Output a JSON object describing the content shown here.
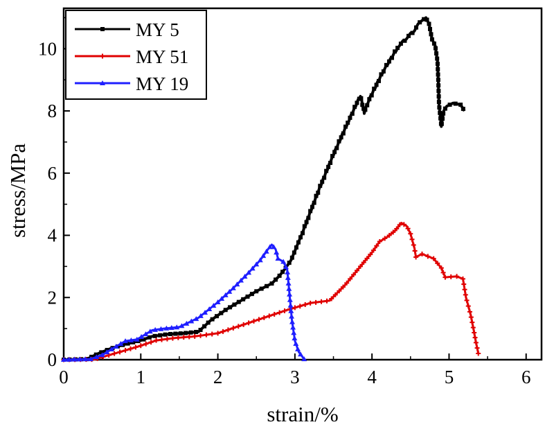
{
  "chart_data": {
    "type": "line",
    "title": "",
    "xlabel": "strain/%",
    "ylabel": "stress/MPa",
    "xlim": [
      0,
      6.2
    ],
    "ylim": [
      0,
      11.3
    ],
    "xticks": [
      "0",
      "1",
      "2",
      "3",
      "4",
      "5",
      "6"
    ],
    "yticks": [
      "0",
      "2",
      "4",
      "6",
      "8",
      "10"
    ],
    "grid": false,
    "legend_position": "top-left",
    "series": [
      {
        "name": "MY 5",
        "color": "#000000",
        "marker": "square",
        "points": [
          [
            0,
            0
          ],
          [
            0.3,
            0.02
          ],
          [
            0.45,
            0.2
          ],
          [
            0.6,
            0.35
          ],
          [
            0.8,
            0.5
          ],
          [
            1.0,
            0.62
          ],
          [
            1.15,
            0.75
          ],
          [
            1.35,
            0.82
          ],
          [
            1.55,
            0.85
          ],
          [
            1.75,
            0.9
          ],
          [
            1.9,
            1.25
          ],
          [
            2.1,
            1.6
          ],
          [
            2.3,
            1.9
          ],
          [
            2.5,
            2.2
          ],
          [
            2.7,
            2.45
          ],
          [
            2.8,
            2.7
          ],
          [
            2.88,
            2.95
          ],
          [
            2.95,
            3.2
          ],
          [
            3.1,
            4.1
          ],
          [
            3.3,
            5.4
          ],
          [
            3.5,
            6.6
          ],
          [
            3.7,
            7.7
          ],
          [
            3.85,
            8.5
          ],
          [
            3.9,
            7.95
          ],
          [
            3.95,
            8.3
          ],
          [
            4.15,
            9.3
          ],
          [
            4.35,
            10.1
          ],
          [
            4.45,
            10.35
          ],
          [
            4.55,
            10.6
          ],
          [
            4.62,
            10.85
          ],
          [
            4.7,
            11.0
          ],
          [
            4.74,
            10.8
          ],
          [
            4.78,
            10.3
          ],
          [
            4.82,
            10.1
          ],
          [
            4.85,
            9.6
          ],
          [
            4.86,
            9.0
          ],
          [
            4.87,
            8.2
          ],
          [
            4.9,
            7.5
          ],
          [
            4.93,
            8.0
          ],
          [
            4.97,
            8.15
          ],
          [
            5.05,
            8.25
          ],
          [
            5.15,
            8.2
          ],
          [
            5.2,
            8.0
          ]
        ]
      },
      {
        "name": "MY 51",
        "color": "#e00000",
        "marker": "star",
        "points": [
          [
            0,
            0
          ],
          [
            0.4,
            0.01
          ],
          [
            0.55,
            0.12
          ],
          [
            0.8,
            0.3
          ],
          [
            1.0,
            0.45
          ],
          [
            1.2,
            0.62
          ],
          [
            1.45,
            0.7
          ],
          [
            1.7,
            0.75
          ],
          [
            2.0,
            0.85
          ],
          [
            2.3,
            1.1
          ],
          [
            2.6,
            1.35
          ],
          [
            2.9,
            1.6
          ],
          [
            3.2,
            1.82
          ],
          [
            3.45,
            1.9
          ],
          [
            3.65,
            2.4
          ],
          [
            3.85,
            3.0
          ],
          [
            4.0,
            3.45
          ],
          [
            4.1,
            3.8
          ],
          [
            4.2,
            3.95
          ],
          [
            4.3,
            4.15
          ],
          [
            4.38,
            4.4
          ],
          [
            4.45,
            4.3
          ],
          [
            4.5,
            4.05
          ],
          [
            4.55,
            3.6
          ],
          [
            4.57,
            3.3
          ],
          [
            4.65,
            3.4
          ],
          [
            4.8,
            3.25
          ],
          [
            4.9,
            2.95
          ],
          [
            4.95,
            2.65
          ],
          [
            5.1,
            2.68
          ],
          [
            5.18,
            2.6
          ],
          [
            5.22,
            2.0
          ],
          [
            5.28,
            1.45
          ],
          [
            5.32,
            0.95
          ],
          [
            5.35,
            0.55
          ],
          [
            5.38,
            0.2
          ]
        ]
      },
      {
        "name": "MY 19",
        "color": "#1f1fff",
        "marker": "triangle",
        "points": [
          [
            0,
            0
          ],
          [
            0.35,
            0.02
          ],
          [
            0.5,
            0.15
          ],
          [
            0.65,
            0.38
          ],
          [
            0.8,
            0.6
          ],
          [
            0.95,
            0.65
          ],
          [
            1.15,
            0.95
          ],
          [
            1.3,
            1.0
          ],
          [
            1.5,
            1.05
          ],
          [
            1.75,
            1.35
          ],
          [
            2.0,
            1.85
          ],
          [
            2.2,
            2.3
          ],
          [
            2.4,
            2.8
          ],
          [
            2.55,
            3.2
          ],
          [
            2.65,
            3.55
          ],
          [
            2.7,
            3.7
          ],
          [
            2.75,
            3.55
          ],
          [
            2.78,
            3.25
          ],
          [
            2.85,
            3.15
          ],
          [
            2.9,
            2.9
          ],
          [
            2.93,
            2.1
          ],
          [
            2.96,
            1.3
          ],
          [
            3.0,
            0.6
          ],
          [
            3.05,
            0.25
          ],
          [
            3.12,
            0.02
          ]
        ]
      }
    ]
  }
}
